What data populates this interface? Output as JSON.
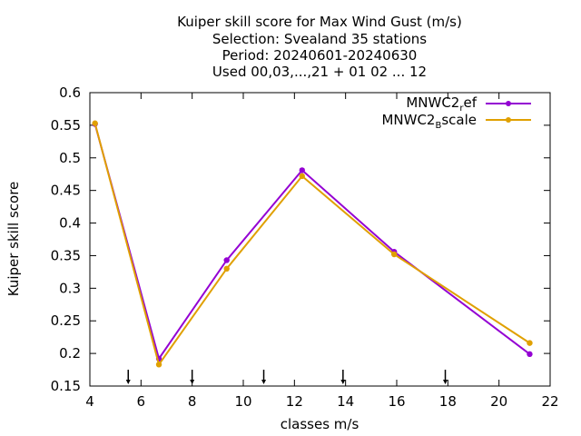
{
  "chart_data": {
    "type": "line",
    "title_lines": [
      "Kuiper skill score  for Max Wind Gust (m/s)",
      "Selection: Svealand     35 stations",
      "Period: 20240601-20240630",
      "Used 00,03,...,21 + 01 02 ... 12"
    ],
    "xlabel": "classes m/s",
    "ylabel": "Kuiper skill score",
    "xlim": [
      4,
      22
    ],
    "ylim": [
      0.15,
      0.6
    ],
    "x_ticks": [
      4,
      6,
      8,
      10,
      12,
      14,
      16,
      18,
      20,
      22
    ],
    "y_ticks": [
      0.15,
      0.2,
      0.25,
      0.3,
      0.35,
      0.4,
      0.45,
      0.5,
      0.55,
      0.6
    ],
    "x_tick_labels": [
      "4",
      "6",
      "8",
      "10",
      "12",
      "14",
      "16",
      "18",
      "20",
      "22"
    ],
    "y_tick_labels": [
      "0.15",
      "0.2",
      "0.25",
      "0.3",
      "0.35",
      "0.4",
      "0.45",
      "0.5",
      "0.55",
      "0.6"
    ],
    "class_limits": [
      5.5,
      8,
      10.8,
      13.9,
      17.9
    ],
    "grid": false,
    "legend_position": "top-right",
    "series": [
      {
        "name_main": "MNWC2",
        "name_sub": "r",
        "name_rest": "ef",
        "color": "#9400d3",
        "x": [
          4.2,
          6.7,
          9.35,
          12.3,
          15.9,
          21.2
        ],
        "y": [
          0.552,
          0.192,
          0.343,
          0.481,
          0.356,
          0.199
        ]
      },
      {
        "name_main": "MNWC2",
        "name_sub": "B",
        "name_rest": "scale",
        "color": "#e0a000",
        "x": [
          4.2,
          6.7,
          9.35,
          12.3,
          15.9,
          21.2
        ],
        "y": [
          0.553,
          0.183,
          0.33,
          0.472,
          0.352,
          0.216
        ]
      }
    ]
  }
}
